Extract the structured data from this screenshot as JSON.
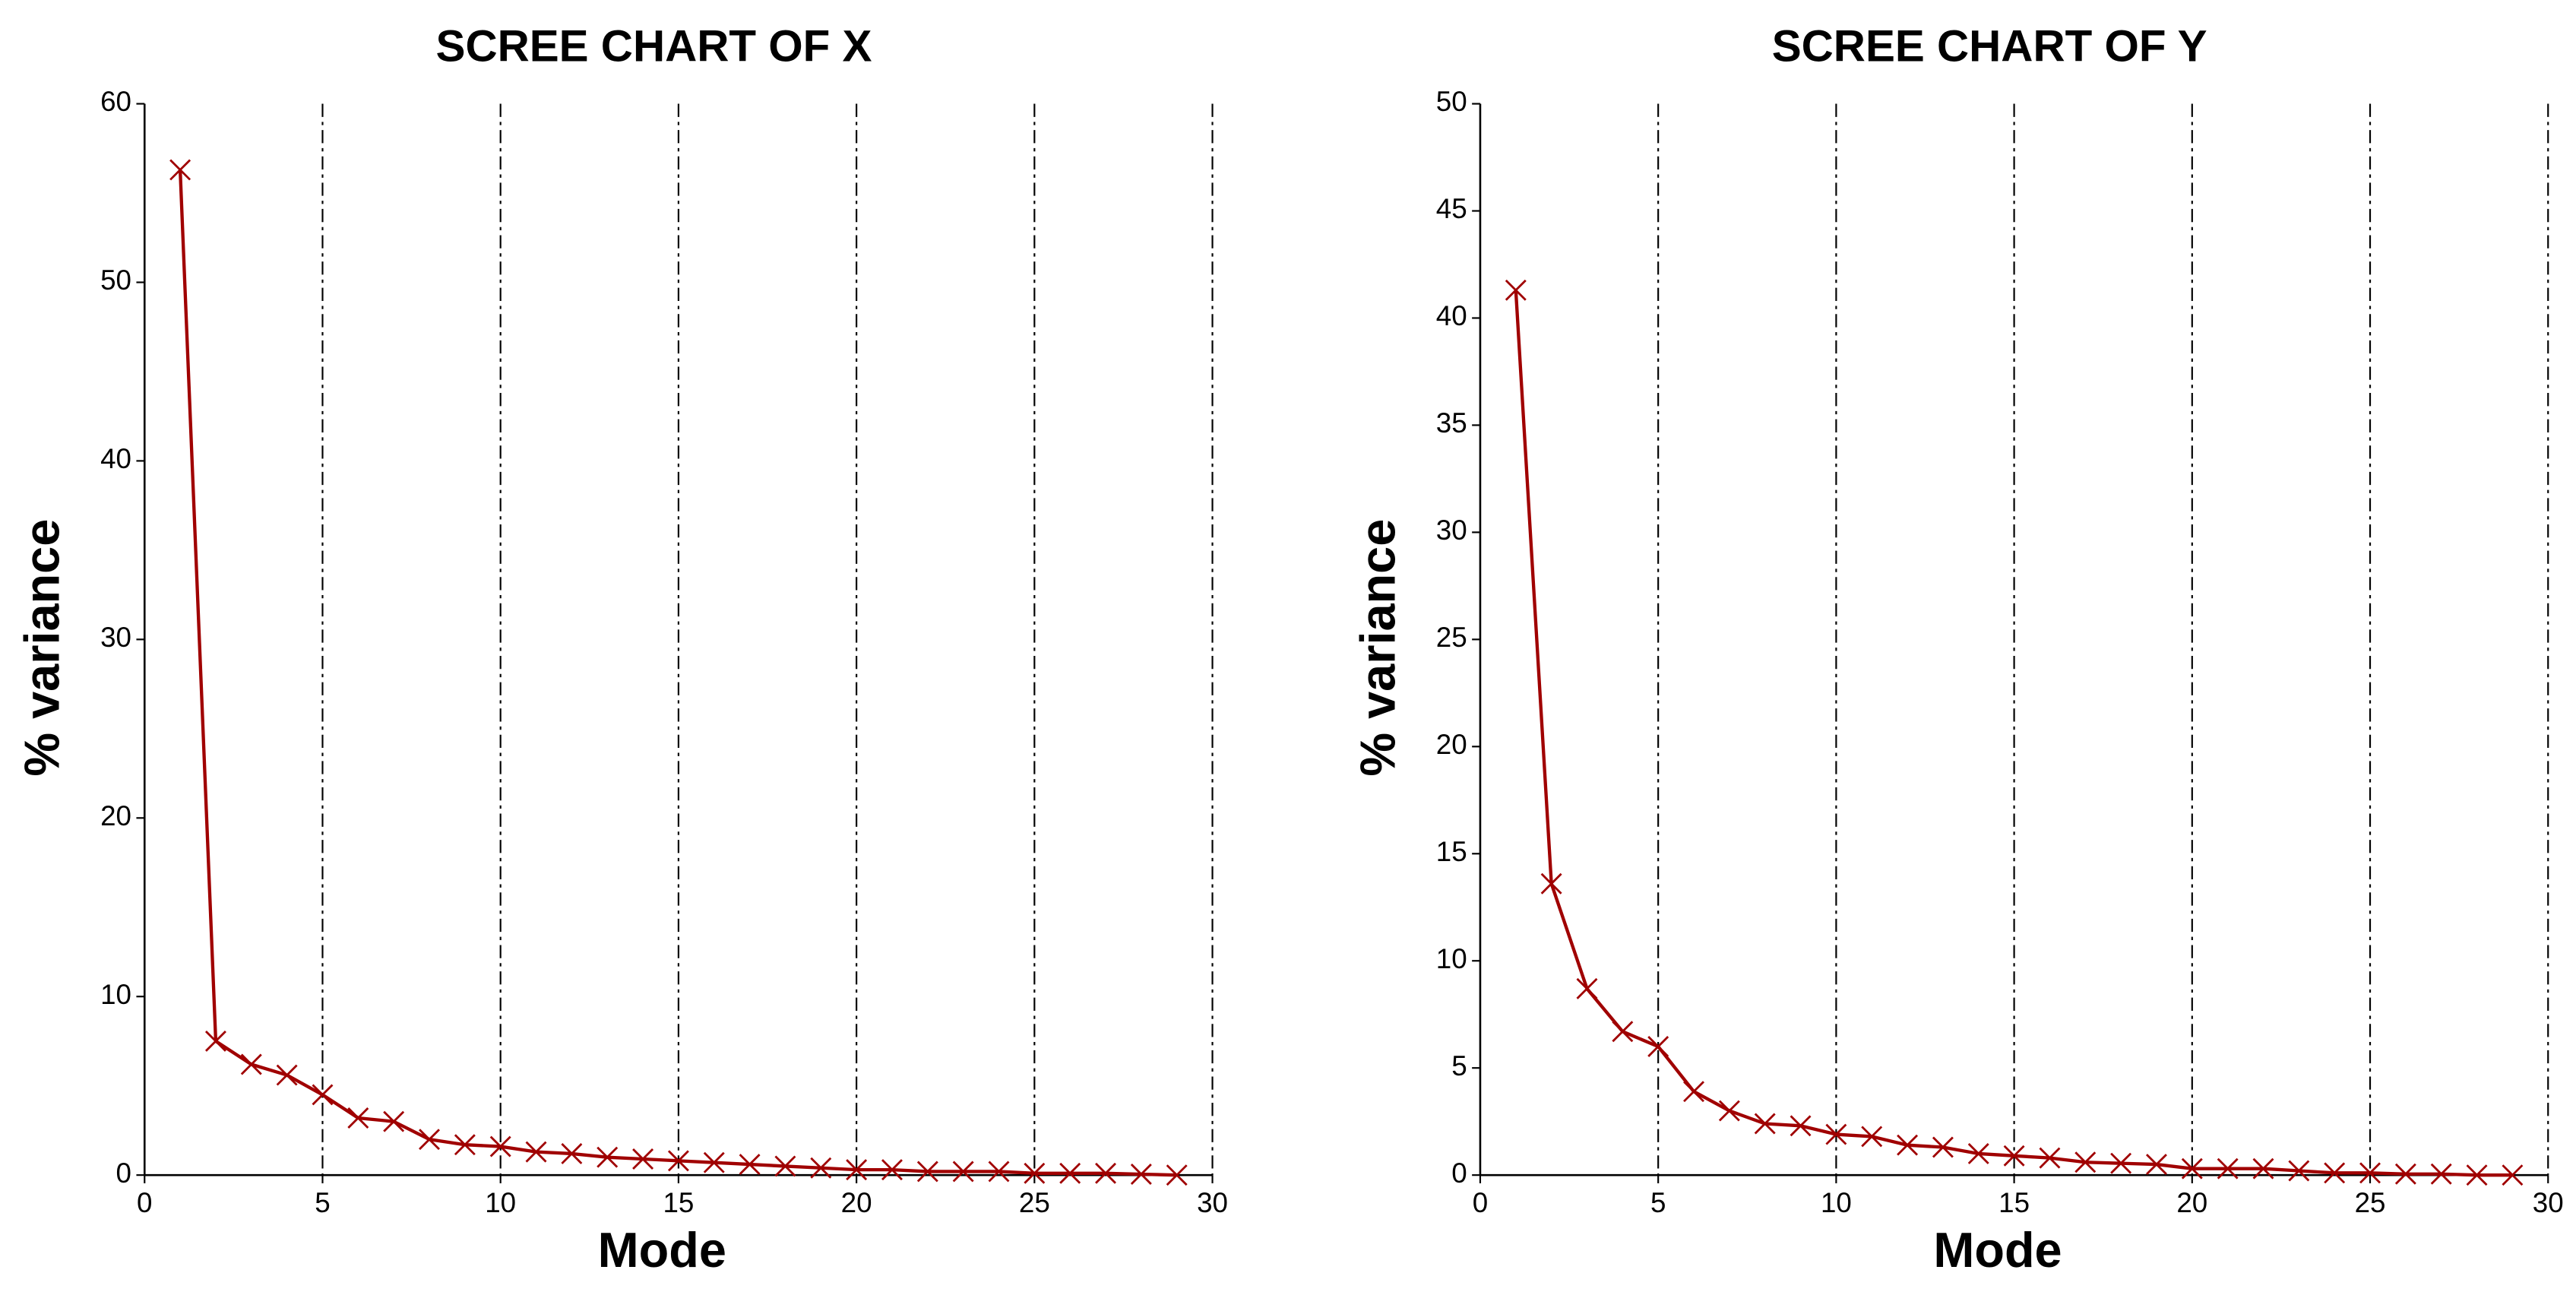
{
  "chart_data": [
    {
      "type": "line",
      "title": "SCREE CHART OF X",
      "x_label": "Mode",
      "y_label": "% variance",
      "x": [
        1,
        2,
        3,
        4,
        5,
        6,
        7,
        8,
        9,
        10,
        11,
        12,
        13,
        14,
        15,
        16,
        17,
        18,
        19,
        20,
        21,
        22,
        23,
        24,
        25,
        26,
        27,
        28,
        29
      ],
      "values": [
        56.3,
        7.5,
        6.2,
        5.6,
        4.5,
        3.2,
        3.0,
        2.0,
        1.7,
        1.6,
        1.3,
        1.2,
        1.0,
        0.9,
        0.8,
        0.7,
        0.6,
        0.5,
        0.4,
        0.3,
        0.3,
        0.2,
        0.2,
        0.2,
        0.1,
        0.1,
        0.1,
        0.05,
        0.0
      ],
      "color": "#a00000",
      "marker": "x",
      "xlim": [
        0,
        30
      ],
      "xticks": [
        0,
        5,
        10,
        15,
        20,
        25,
        30
      ],
      "ylim": [
        0,
        60
      ],
      "yticks": [
        0,
        10,
        20,
        30,
        40,
        50,
        60
      ],
      "grid": "x"
    },
    {
      "type": "line",
      "title": "SCREE CHART OF Y",
      "x_label": "Mode",
      "y_label": "% variance",
      "x": [
        1,
        2,
        3,
        4,
        5,
        6,
        7,
        8,
        9,
        10,
        11,
        12,
        13,
        14,
        15,
        16,
        17,
        18,
        19,
        20,
        21,
        22,
        23,
        24,
        25,
        26,
        27,
        28,
        29
      ],
      "values": [
        41.3,
        13.6,
        8.7,
        6.7,
        6.0,
        3.9,
        3.0,
        2.4,
        2.3,
        1.9,
        1.8,
        1.4,
        1.3,
        1.0,
        0.9,
        0.8,
        0.6,
        0.55,
        0.5,
        0.3,
        0.3,
        0.3,
        0.2,
        0.1,
        0.1,
        0.05,
        0.05,
        0.0,
        0.0
      ],
      "color": "#a00000",
      "marker": "x",
      "xlim": [
        0,
        30
      ],
      "xticks": [
        0,
        5,
        10,
        15,
        20,
        25,
        30
      ],
      "ylim": [
        0,
        50
      ],
      "yticks": [
        0,
        5,
        10,
        15,
        20,
        25,
        30,
        35,
        40,
        45,
        50
      ],
      "grid": "x"
    }
  ]
}
